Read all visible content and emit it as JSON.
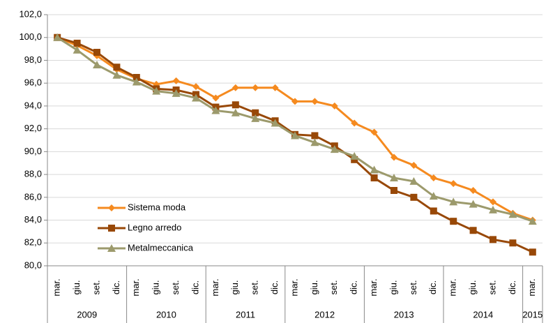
{
  "chart_data": {
    "type": "line",
    "categories": [
      "mar.",
      "giu.",
      "set.",
      "dic.",
      "mar.",
      "giu.",
      "set.",
      "dic.",
      "mar.",
      "giu.",
      "set.",
      "dic.",
      "mar.",
      "giu.",
      "set.",
      "dic.",
      "mar.",
      "giu.",
      "set.",
      "dic.",
      "mar.",
      "giu.",
      "set.",
      "dic.",
      "mar."
    ],
    "groups": [
      "2009",
      "2010",
      "2011",
      "2012",
      "2013",
      "2014",
      "2015"
    ],
    "ylim": [
      80,
      102
    ],
    "yticks": [
      {
        "value": 80,
        "label": "80,0"
      },
      {
        "value": 82,
        "label": "82,0"
      },
      {
        "value": 84,
        "label": "84,0"
      },
      {
        "value": 86,
        "label": "86,0"
      },
      {
        "value": 88,
        "label": "88,0"
      },
      {
        "value": 90,
        "label": "90,0"
      },
      {
        "value": 92,
        "label": "92,0"
      },
      {
        "value": 94,
        "label": "94,0"
      },
      {
        "value": 96,
        "label": "96,0"
      },
      {
        "value": 98,
        "label": "98,0"
      },
      {
        "value": 100,
        "label": "100,0"
      },
      {
        "value": 102,
        "label": "102,0"
      }
    ],
    "grid": true,
    "legend": "bottom-left",
    "series": [
      {
        "name": "Sistema moda",
        "color": "#f58a1f",
        "marker": "diamond",
        "values": [
          100,
          99.3,
          98.4,
          97.2,
          96.4,
          95.9,
          96.2,
          95.7,
          94.7,
          95.6,
          95.6,
          95.6,
          94.4,
          94.4,
          94.0,
          92.5,
          91.7,
          89.5,
          88.8,
          87.7,
          87.2,
          86.6,
          85.6,
          84.6,
          84.0
        ]
      },
      {
        "name": "Legno arredo",
        "color": "#984807",
        "marker": "square",
        "values": [
          100,
          99.5,
          98.7,
          97.4,
          96.5,
          95.5,
          95.4,
          95.0,
          93.9,
          94.1,
          93.4,
          92.7,
          91.5,
          91.4,
          90.5,
          89.3,
          87.7,
          86.6,
          86.0,
          84.8,
          83.9,
          83.1,
          82.3,
          82.0,
          81.2
        ]
      },
      {
        "name": "Metalmeccanica",
        "color": "#9c9a6c",
        "marker": "triangle",
        "values": [
          100,
          98.9,
          97.6,
          96.7,
          96.1,
          95.3,
          95.1,
          94.7,
          93.6,
          93.4,
          92.9,
          92.5,
          91.4,
          90.8,
          90.2,
          89.6,
          88.4,
          87.7,
          87.4,
          86.1,
          85.6,
          85.4,
          84.9,
          84.5,
          83.9
        ]
      }
    ]
  }
}
